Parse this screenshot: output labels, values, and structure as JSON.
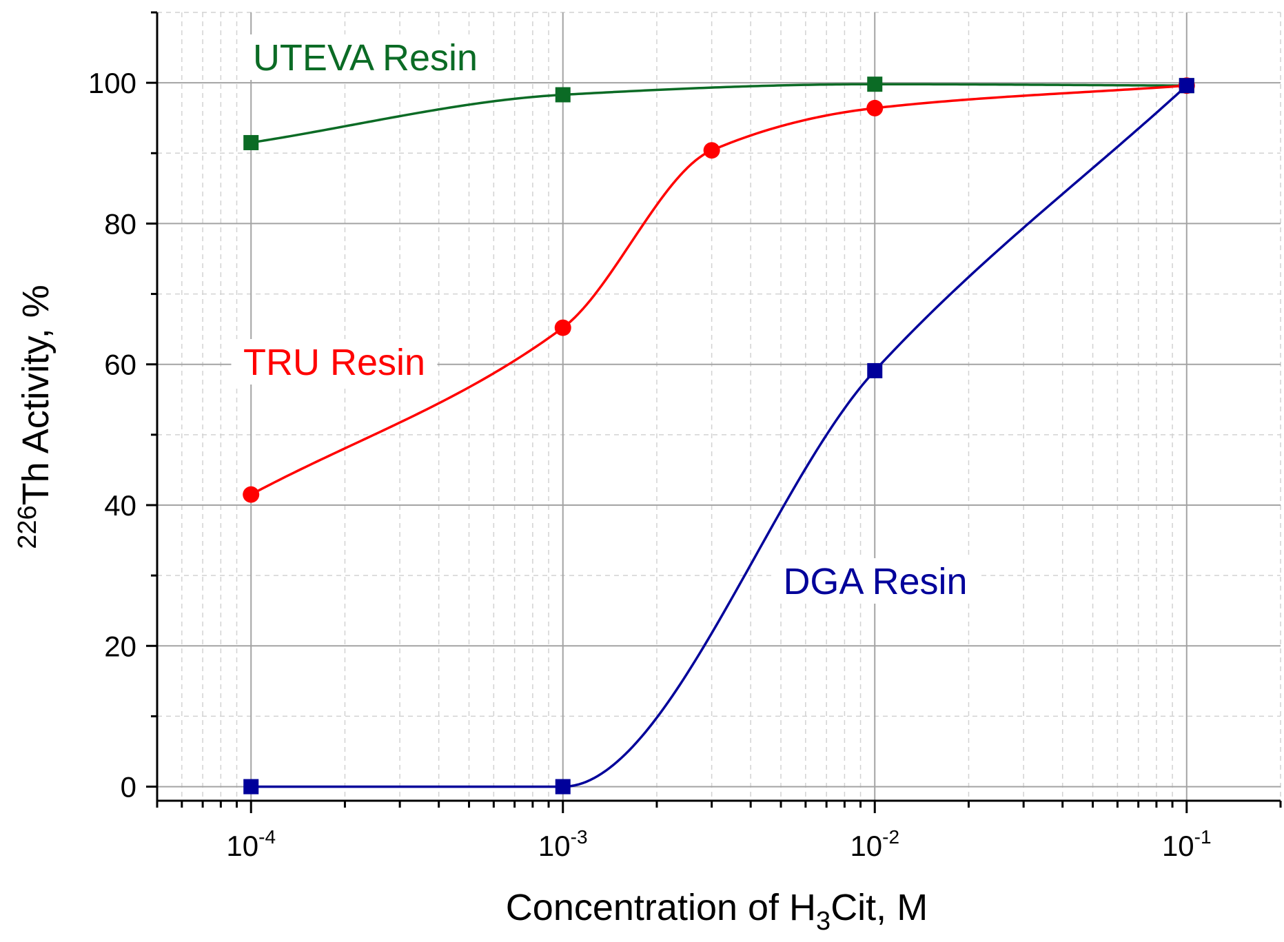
{
  "chart_data": {
    "type": "line",
    "xscale": "log",
    "xlim": [
      5e-05,
      0.2
    ],
    "ylim": [
      -2,
      110
    ],
    "xticks": [
      {
        "value": 0.0001,
        "base": "10",
        "exp": "-4"
      },
      {
        "value": 0.001,
        "base": "10",
        "exp": "-3"
      },
      {
        "value": 0.01,
        "base": "10",
        "exp": "-2"
      },
      {
        "value": 0.1,
        "base": "10",
        "exp": "-1"
      }
    ],
    "yticks": [
      "0",
      "20",
      "40",
      "60",
      "80",
      "100"
    ],
    "xlabel": {
      "prefix": "Concentration of H",
      "sub": "3",
      "suffix": "Cit, M"
    },
    "ylabel": {
      "sup": "226",
      "text": "Th Activity, %"
    },
    "grid": true,
    "series": [
      {
        "name": "UTEVA Resin",
        "color": "#0b6b25",
        "marker": "square",
        "x": [
          0.0001,
          0.001,
          0.01,
          0.1
        ],
        "y": [
          91.5,
          98.3,
          99.8,
          99.6
        ]
      },
      {
        "name": "TRU Resin",
        "color": "#ff0000",
        "marker": "circle",
        "x": [
          0.0001,
          0.001,
          0.003,
          0.01,
          0.1
        ],
        "y": [
          41.5,
          65.2,
          90.4,
          96.4,
          99.6
        ]
      },
      {
        "name": "DGA Resin",
        "color": "#00009a",
        "marker": "square",
        "x": [
          0.0001,
          0.001,
          0.01,
          0.1
        ],
        "y": [
          0,
          0,
          59.1,
          99.6
        ]
      }
    ]
  }
}
